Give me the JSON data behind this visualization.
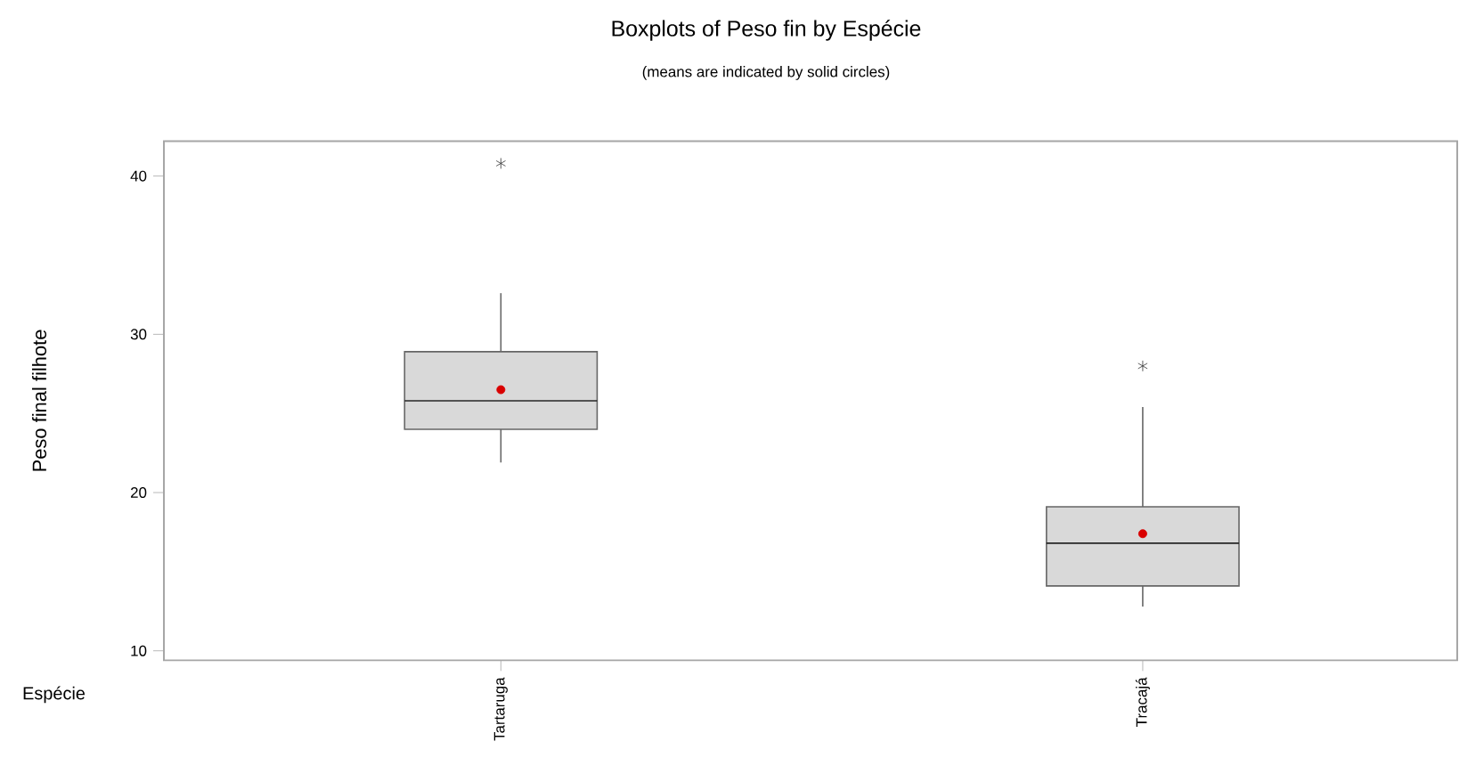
{
  "chart_data": {
    "type": "box",
    "title": "Boxplots of Peso fin by Espécie",
    "subtitle": "(means are indicated by solid circles)",
    "xlabel": "Espécie",
    "ylabel": "Peso final filhote",
    "categories": [
      "Tartaruga",
      "Tracajá"
    ],
    "color": "#d9d9d9",
    "boxes": [
      {
        "low": 21.9,
        "q1": 24.0,
        "median": 25.8,
        "q3": 28.9,
        "high": 32.6,
        "mean": 26.5,
        "outliers": [
          40.8
        ]
      },
      {
        "low": 12.8,
        "q1": 14.1,
        "median": 16.8,
        "q3": 19.1,
        "high": 25.4,
        "mean": 17.4,
        "outliers": [
          28.0
        ]
      }
    ],
    "ylim": [
      9.4,
      42.2
    ],
    "yticks": [
      10,
      20,
      30,
      40
    ]
  }
}
